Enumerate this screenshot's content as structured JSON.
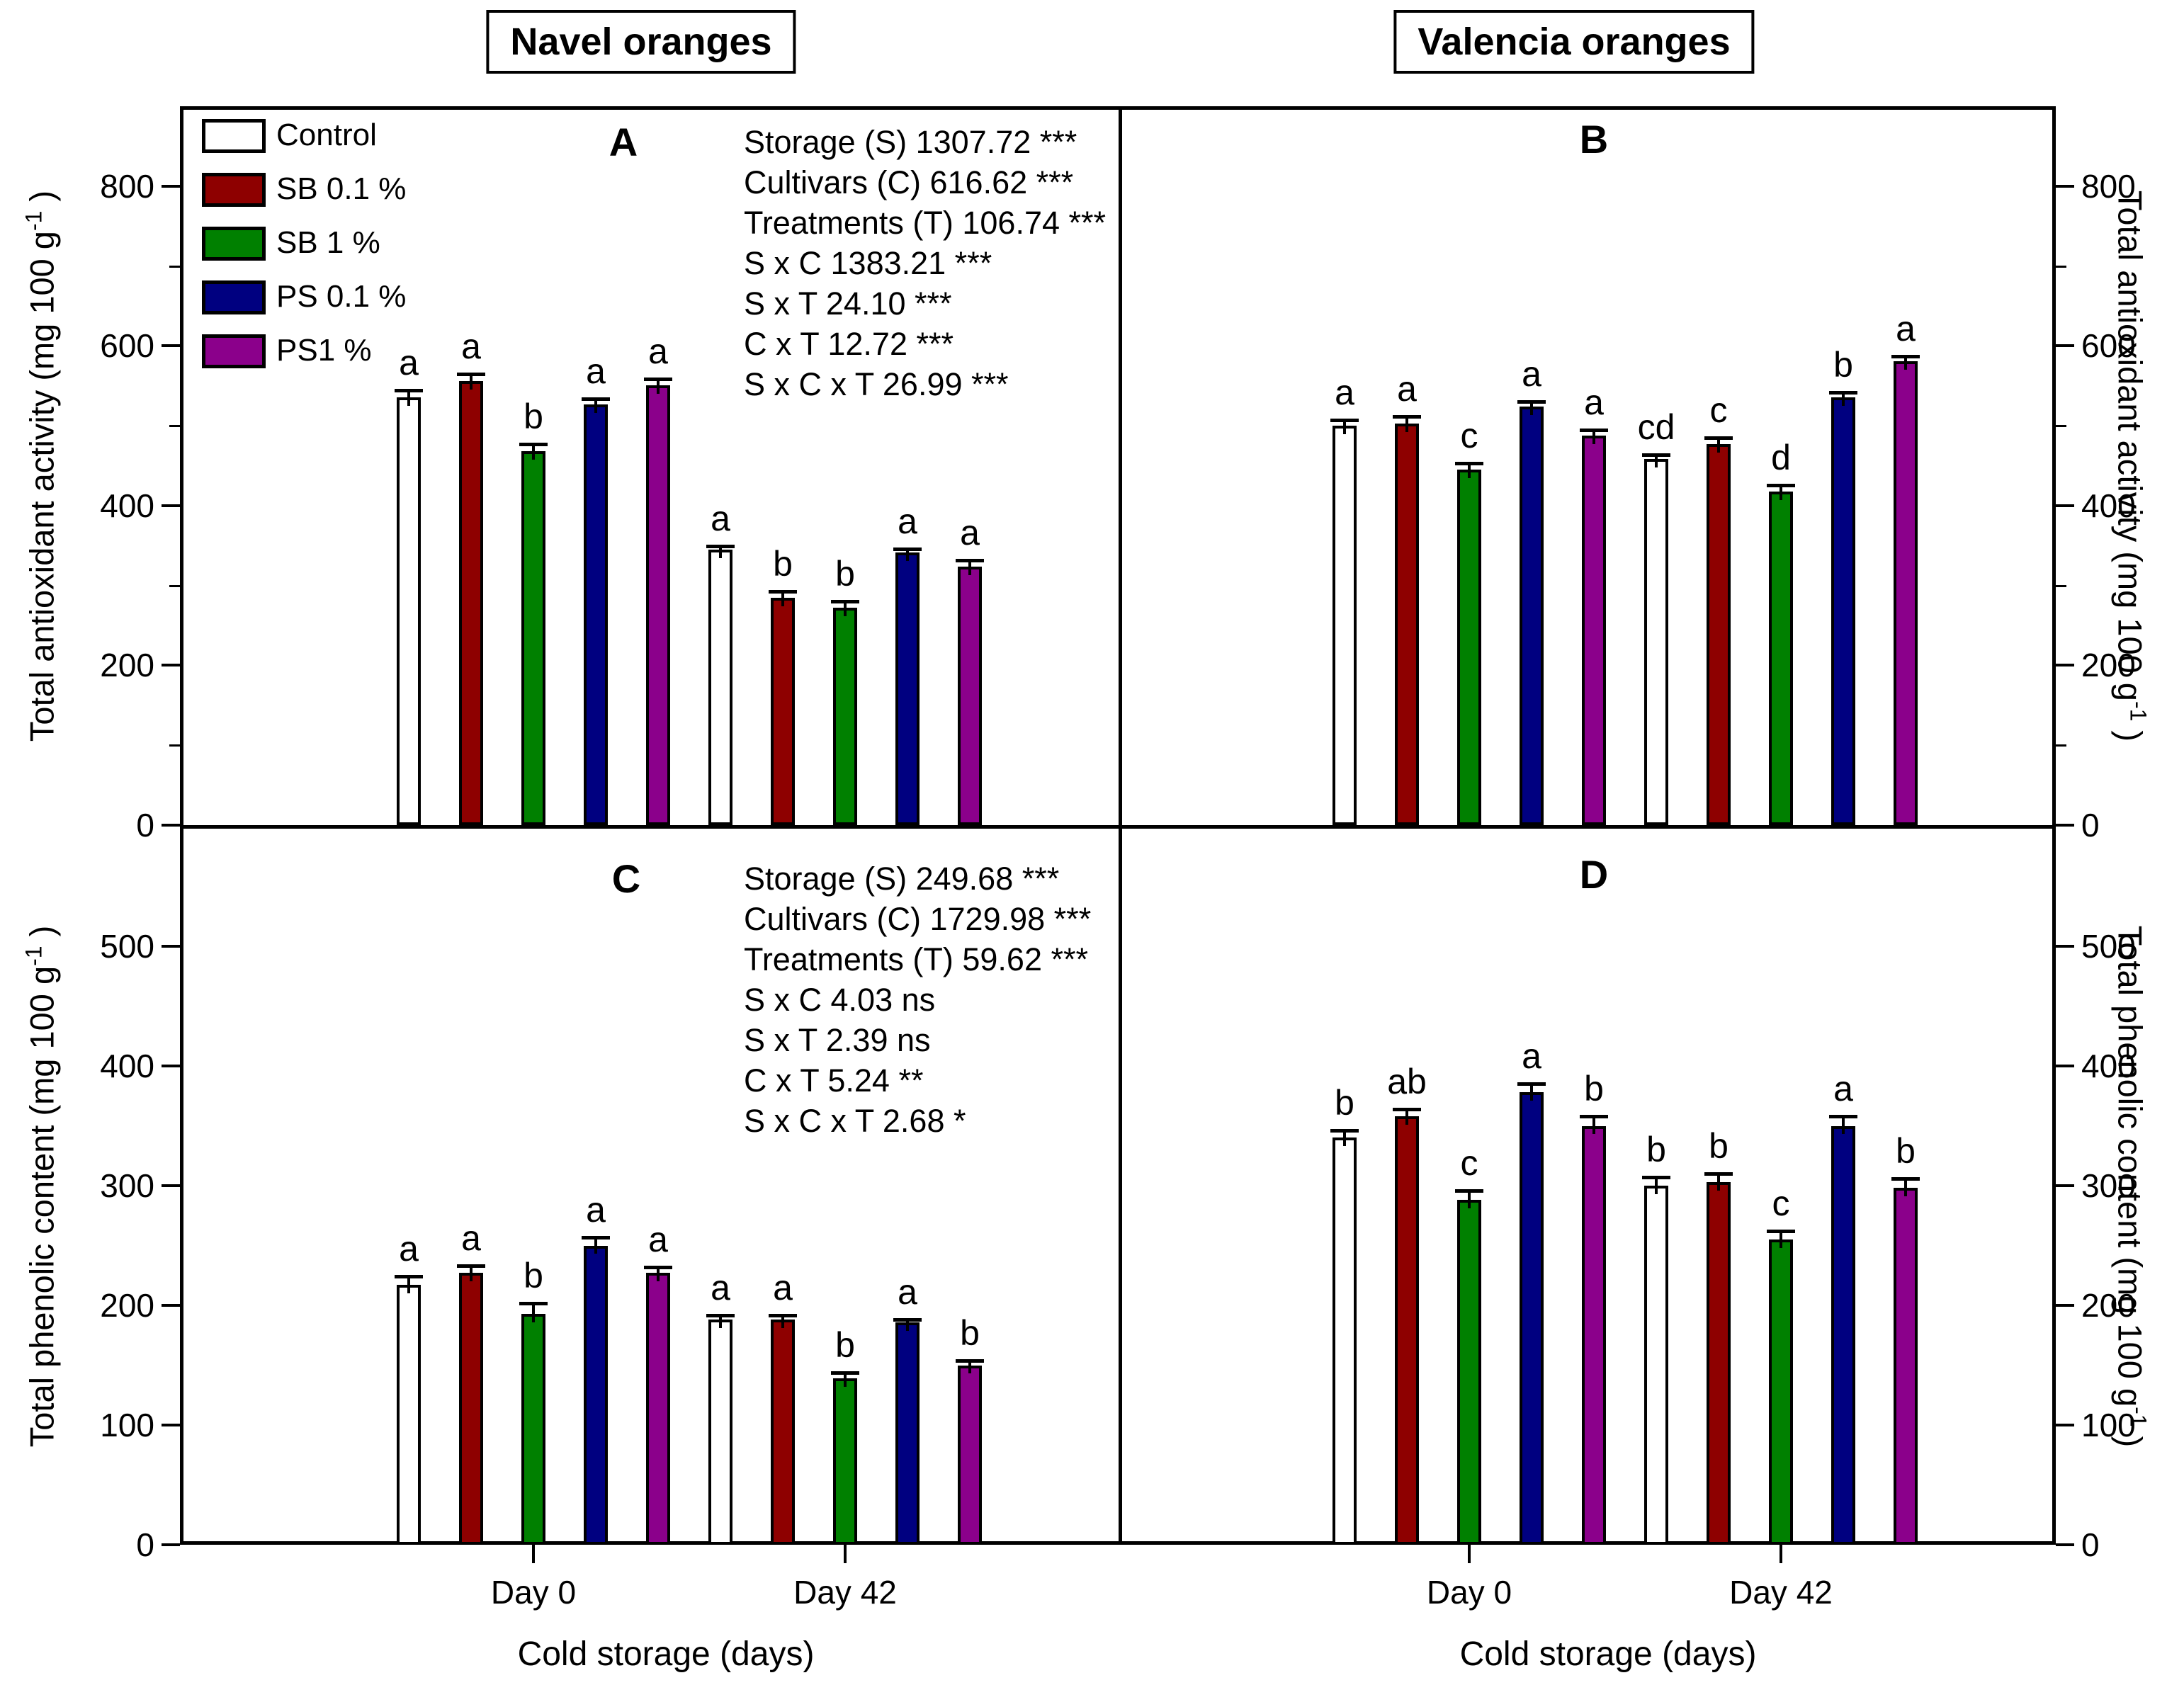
{
  "figure": {
    "titles": {
      "left": "Navel oranges",
      "right": "Valencia oranges"
    },
    "x_axis": {
      "title": "Cold storage (days)",
      "categories": [
        "Day 0",
        "Day 42"
      ]
    },
    "legend": [
      {
        "label": "Control",
        "color": "#FFFFFF"
      },
      {
        "label": "SB 0.1 %",
        "color": "#8E0000"
      },
      {
        "label": "SB 1 %",
        "color": "#008000"
      },
      {
        "label": "PS 0.1 %",
        "color": "#000080"
      },
      {
        "label": "PS1 %",
        "color": "#8B008B"
      }
    ],
    "stats_top": {
      "lines": [
        "Storage (S) 1307.72 ***",
        "Cultivars (C) 616.62 ***",
        "Treatments (T) 106.74 ***",
        "S x C 1383.21 ***",
        "S x T 24.10 ***",
        "C x T 12.72 ***",
        "S x C x T 26.99 ***"
      ]
    },
    "stats_bottom": {
      "lines": [
        "Storage (S) 249.68 ***",
        "Cultivars (C) 1729.98 ***",
        "Treatments (T) 59.62 ***",
        "S x C 4.03 ns",
        "S x T 2.39 ns",
        "C x T 5.24 **",
        "S x C x T 2.68 *"
      ]
    }
  },
  "chart_data": [
    {
      "type": "bar",
      "panel_letter": "A",
      "cultivar": "Navel oranges",
      "ylabel": "Total antioxidant activity (mg 100 g-1)",
      "ylabel_parts": {
        "pre": "Total antioxidant activity (mg 100 g",
        "sup": "-1",
        "post": " )"
      },
      "ylim": [
        0,
        900
      ],
      "yticks": [
        0,
        200,
        400,
        600,
        800
      ],
      "categories": [
        "Day 0",
        "Day 42"
      ],
      "groups": [
        {
          "category": "Day 0",
          "bars": [
            {
              "treatment": "Control",
              "value": 536,
              "error": 8,
              "letter": "a"
            },
            {
              "treatment": "SB 0.1 %",
              "value": 556,
              "error": 9,
              "letter": "a"
            },
            {
              "treatment": "SB 1 %",
              "value": 468,
              "error": 9,
              "letter": "b"
            },
            {
              "treatment": "PS 0.1 %",
              "value": 527,
              "error": 7,
              "letter": "a"
            },
            {
              "treatment": "PS1 %",
              "value": 551,
              "error": 8,
              "letter": "a"
            }
          ]
        },
        {
          "category": "Day 42",
          "bars": [
            {
              "treatment": "Control",
              "value": 345,
              "error": 4,
              "letter": "a"
            },
            {
              "treatment": "SB 0.1 %",
              "value": 285,
              "error": 8,
              "letter": "b"
            },
            {
              "treatment": "SB 1 %",
              "value": 272,
              "error": 8,
              "letter": "b"
            },
            {
              "treatment": "PS 0.1 %",
              "value": 341,
              "error": 5,
              "letter": "a"
            },
            {
              "treatment": "PS1 %",
              "value": 324,
              "error": 8,
              "letter": "a"
            }
          ]
        }
      ]
    },
    {
      "type": "bar",
      "panel_letter": "B",
      "cultivar": "Valencia oranges",
      "ylabel": "Total antioxidant activity (mg 100 g-1)",
      "ylabel_parts": {
        "pre": "Total antioxidant activity (mg 100 g",
        "sup": "-1",
        "post": " )"
      },
      "ylim": [
        0,
        900
      ],
      "yticks": [
        0,
        200,
        400,
        600,
        800
      ],
      "categories": [
        "Day 0",
        "Day 42"
      ],
      "groups": [
        {
          "category": "Day 0",
          "bars": [
            {
              "treatment": "Control",
              "value": 500,
              "error": 7,
              "letter": "a"
            },
            {
              "treatment": "SB 0.1 %",
              "value": 503,
              "error": 9,
              "letter": "a"
            },
            {
              "treatment": "SB 1 %",
              "value": 445,
              "error": 8,
              "letter": "c"
            },
            {
              "treatment": "PS 0.1 %",
              "value": 524,
              "error": 6,
              "letter": "a"
            },
            {
              "treatment": "PS1 %",
              "value": 488,
              "error": 7,
              "letter": "a"
            }
          ]
        },
        {
          "category": "Day 42",
          "bars": [
            {
              "treatment": "Control",
              "value": 458,
              "error": 6,
              "letter": "cd"
            },
            {
              "treatment": "SB 0.1 %",
              "value": 477,
              "error": 8,
              "letter": "c"
            },
            {
              "treatment": "SB 1 %",
              "value": 418,
              "error": 8,
              "letter": "d"
            },
            {
              "treatment": "PS 0.1 %",
              "value": 536,
              "error": 6,
              "letter": "b"
            },
            {
              "treatment": "PS1 %",
              "value": 581,
              "error": 6,
              "letter": "a"
            }
          ]
        }
      ]
    },
    {
      "type": "bar",
      "panel_letter": "C",
      "cultivar": "Navel oranges",
      "ylabel": "Total phenolic content (mg 100 g-1)",
      "ylabel_parts": {
        "pre": "Total phenolic content (mg 100 g",
        "sup": "-1",
        "post": " )"
      },
      "ylim": [
        0,
        600
      ],
      "yticks": [
        0,
        100,
        200,
        300,
        400,
        500
      ],
      "categories": [
        "Day 0",
        "Day 42"
      ],
      "groups": [
        {
          "category": "Day 0",
          "bars": [
            {
              "treatment": "Control",
              "value": 217,
              "error": 7,
              "letter": "a"
            },
            {
              "treatment": "SB 0.1 %",
              "value": 227,
              "error": 6,
              "letter": "a"
            },
            {
              "treatment": "SB 1 %",
              "value": 193,
              "error": 9,
              "letter": "b"
            },
            {
              "treatment": "PS 0.1 %",
              "value": 250,
              "error": 7,
              "letter": "a"
            },
            {
              "treatment": "PS1 %",
              "value": 227,
              "error": 5,
              "letter": "a"
            }
          ]
        },
        {
          "category": "Day 42",
          "bars": [
            {
              "treatment": "Control",
              "value": 188,
              "error": 4,
              "letter": "a"
            },
            {
              "treatment": "SB 0.1 %",
              "value": 188,
              "error": 4,
              "letter": "a"
            },
            {
              "treatment": "SB 1 %",
              "value": 139,
              "error": 5,
              "letter": "b"
            },
            {
              "treatment": "PS 0.1 %",
              "value": 186,
              "error": 2,
              "letter": "a"
            },
            {
              "treatment": "PS1 %",
              "value": 150,
              "error": 4,
              "letter": "b"
            }
          ]
        }
      ]
    },
    {
      "type": "bar",
      "panel_letter": "D",
      "cultivar": "Valencia oranges",
      "ylabel": "Total phenolic content (mg 100 g-1)",
      "ylabel_parts": {
        "pre": "Total phenolic content (mg 100 g",
        "sup": "-1",
        "post": " )"
      },
      "ylim": [
        0,
        600
      ],
      "yticks": [
        0,
        100,
        200,
        300,
        400,
        500
      ],
      "categories": [
        "Day 0",
        "Day 42"
      ],
      "groups": [
        {
          "category": "Day 0",
          "bars": [
            {
              "treatment": "Control",
              "value": 340,
              "error": 6,
              "letter": "b"
            },
            {
              "treatment": "SB 0.1 %",
              "value": 358,
              "error": 6,
              "letter": "ab"
            },
            {
              "treatment": "SB 1 %",
              "value": 288,
              "error": 8,
              "letter": "c"
            },
            {
              "treatment": "PS 0.1 %",
              "value": 378,
              "error": 7,
              "letter": "a"
            },
            {
              "treatment": "PS1 %",
              "value": 350,
              "error": 8,
              "letter": "b"
            }
          ]
        },
        {
          "category": "Day 42",
          "bars": [
            {
              "treatment": "Control",
              "value": 300,
              "error": 7,
              "letter": "b"
            },
            {
              "treatment": "SB 0.1 %",
              "value": 303,
              "error": 7,
              "letter": "b"
            },
            {
              "treatment": "SB 1 %",
              "value": 255,
              "error": 7,
              "letter": "c"
            },
            {
              "treatment": "PS 0.1 %",
              "value": 350,
              "error": 8,
              "letter": "a"
            },
            {
              "treatment": "PS1 %",
              "value": 298,
              "error": 8,
              "letter": "b"
            }
          ]
        }
      ]
    }
  ]
}
